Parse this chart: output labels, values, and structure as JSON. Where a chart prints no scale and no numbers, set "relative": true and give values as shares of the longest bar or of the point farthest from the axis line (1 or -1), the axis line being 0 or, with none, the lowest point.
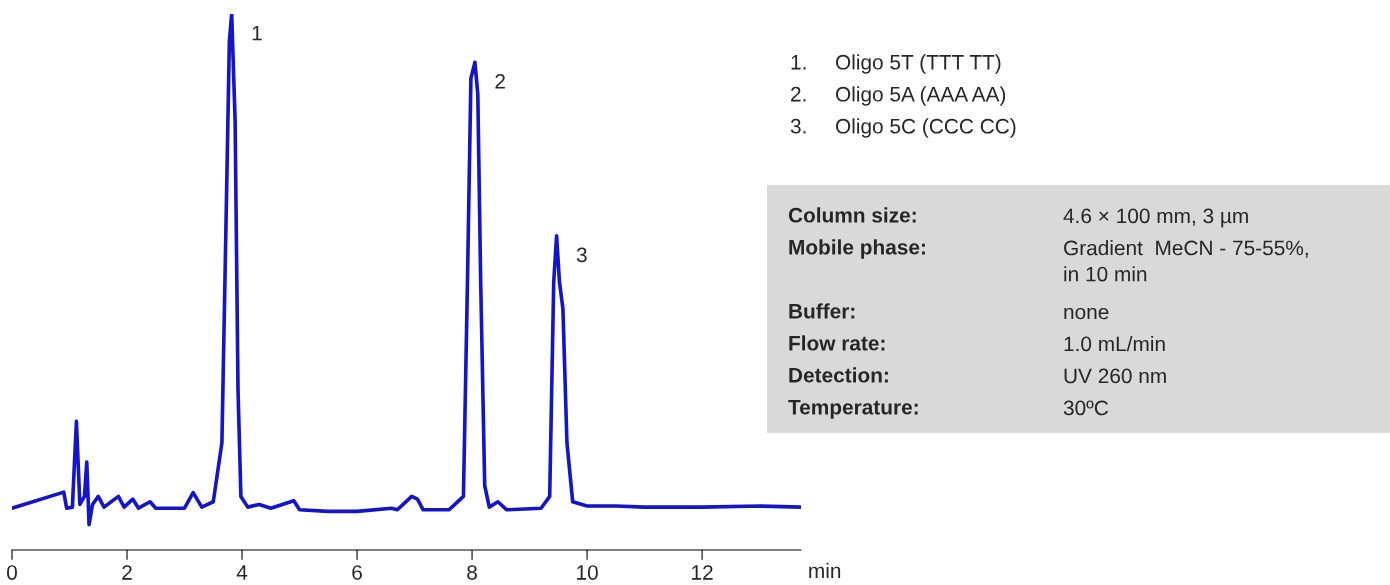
{
  "chart_data": {
    "type": "line",
    "relative": true,
    "xlabel": "min",
    "xlim": [
      0,
      13.72
    ],
    "xticks": [
      0,
      2,
      4,
      6,
      8,
      10,
      12
    ],
    "grid": false,
    "legend": false,
    "marker": "none",
    "line_style": "solid",
    "series": [
      {
        "color": "#1414c8",
        "x": [
          0,
          0.9,
          0.95,
          1.05,
          1.12,
          1.18,
          1.26,
          1.3,
          1.34,
          1.4,
          1.5,
          1.6,
          1.85,
          1.95,
          2.1,
          2.2,
          2.4,
          2.5,
          3.0,
          3.15,
          3.3,
          3.5,
          3.65,
          3.72,
          3.78,
          3.82,
          3.88,
          3.93,
          3.98,
          4.1,
          4.3,
          4.5,
          4.9,
          5.0,
          5.5,
          6.0,
          6.6,
          6.7,
          6.95,
          7.05,
          7.15,
          7.6,
          7.85,
          7.92,
          7.98,
          8.05,
          8.1,
          8.15,
          8.22,
          8.3,
          8.45,
          8.6,
          9.2,
          9.35,
          9.42,
          9.47,
          9.52,
          9.58,
          9.65,
          9.75,
          10.0,
          10.5,
          11.0,
          12.0,
          13.0,
          13.72
        ],
        "values": [
          0.078,
          0.108,
          0.078,
          0.08,
          0.24,
          0.085,
          0.1,
          0.164,
          0.047,
          0.085,
          0.1,
          0.08,
          0.1,
          0.08,
          0.095,
          0.078,
          0.09,
          0.078,
          0.078,
          0.107,
          0.08,
          0.09,
          0.2,
          0.6,
          0.95,
          1.0,
          0.8,
          0.3,
          0.1,
          0.08,
          0.085,
          0.078,
          0.092,
          0.075,
          0.072,
          0.072,
          0.078,
          0.075,
          0.1,
          0.095,
          0.075,
          0.075,
          0.1,
          0.5,
          0.88,
          0.91,
          0.85,
          0.5,
          0.12,
          0.08,
          0.09,
          0.075,
          0.078,
          0.1,
          0.5,
          0.586,
          0.5,
          0.45,
          0.2,
          0.09,
          0.082,
          0.082,
          0.08,
          0.08,
          0.082,
          0.08
        ]
      }
    ],
    "annotations": [
      {
        "text": "1",
        "x": 3.82,
        "y": 1.0
      },
      {
        "text": "2",
        "x": 8.05,
        "y": 0.91
      },
      {
        "text": "3",
        "x": 9.47,
        "y": 0.586
      },
      "1.",
      "Oligo 5T (TTT TT)",
      "2.",
      "Oligo 5A (AAA AA)",
      "3.",
      "Oligo 5C (CCC CC)",
      "Column size:",
      "4.6 × 100 mm, 3 µm",
      "Mobile phase:",
      "Gradient  MeCN - 75-55%,\nin 10 min",
      "Buffer:",
      "none",
      "Flow rate:",
      "1.0 mL/min",
      "Detection:",
      "UV 260 nm",
      "Temperature:",
      "30ºC"
    ]
  }
}
